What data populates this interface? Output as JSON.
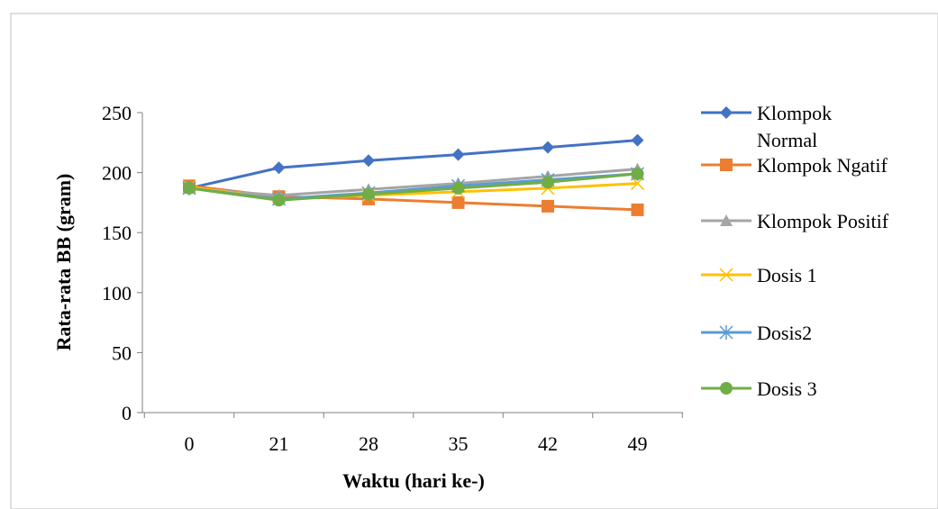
{
  "chart_data": {
    "type": "line",
    "title": "",
    "xlabel": "Waktu (hari ke-)",
    "ylabel": "Rata-rata BB (gram)",
    "categories": [
      "0",
      "21",
      "28",
      "35",
      "42",
      "49"
    ],
    "ylim": [
      0,
      250
    ],
    "yticks": [
      0,
      50,
      100,
      150,
      200,
      250
    ],
    "grid": false,
    "legend_position": "right",
    "series": [
      {
        "name": "Klompok Normal",
        "color": "#4472C4",
        "marker": "diamond",
        "values": [
          187,
          204,
          210,
          215,
          221,
          227
        ]
      },
      {
        "name": "Klompok Ngatif",
        "color": "#ED7D31",
        "marker": "square",
        "values": [
          189,
          180,
          178,
          175,
          172,
          169
        ]
      },
      {
        "name": "Klompok Positif",
        "color": "#A5A5A5",
        "marker": "triangle",
        "values": [
          187,
          181,
          186,
          191,
          197,
          203
        ]
      },
      {
        "name": "Dosis 1",
        "color": "#FFC000",
        "marker": "x",
        "values": [
          188,
          178,
          181,
          184,
          187,
          191
        ]
      },
      {
        "name": "Dosis2",
        "color": "#5B9BD5",
        "marker": "star",
        "values": [
          187,
          178,
          183,
          189,
          194,
          199
        ]
      },
      {
        "name": "Dosis 3",
        "color": "#70AD47",
        "marker": "circle",
        "values": [
          187,
          177,
          182,
          187,
          192,
          199
        ]
      }
    ]
  }
}
